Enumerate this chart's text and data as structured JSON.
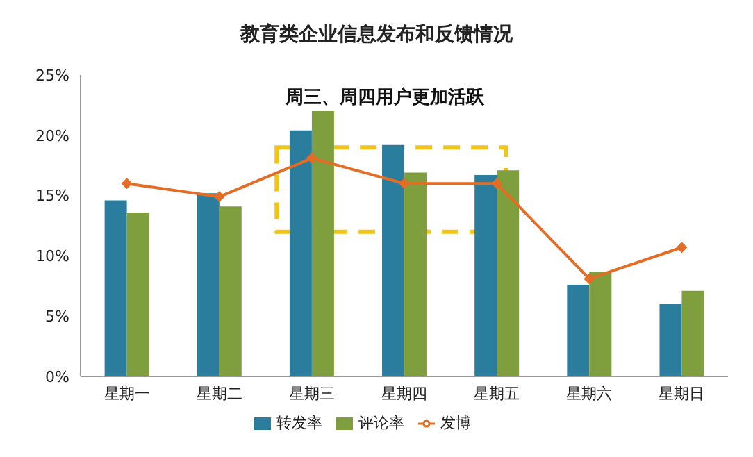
{
  "chart_data": {
    "type": "bar",
    "title": "教育类企业信息发布和反馈情况",
    "categories": [
      "星期一",
      "星期二",
      "星期三",
      "星期四",
      "星期五",
      "星期六",
      "星期日"
    ],
    "series": [
      {
        "name": "转发率",
        "color": "#2b7d9e",
        "values": [
          14.6,
          15.2,
          20.4,
          19.2,
          16.7,
          7.6,
          6.0
        ]
      },
      {
        "name": "评论率",
        "color": "#7f9e3e",
        "values": [
          13.6,
          14.1,
          22.0,
          16.9,
          17.1,
          8.7,
          7.1
        ]
      },
      {
        "name": "发博",
        "type": "line",
        "color": "#e46c24",
        "marker": "diamond",
        "values": [
          16.0,
          14.9,
          18.1,
          16.0,
          16.0,
          8.1,
          10.7
        ]
      }
    ],
    "ylim": [
      0,
      25
    ],
    "yticks": [
      {
        "value": 0,
        "label": "0%"
      },
      {
        "value": 5,
        "label": "5%"
      },
      {
        "value": 10,
        "label": "10%"
      },
      {
        "value": 15,
        "label": "15%"
      },
      {
        "value": 20,
        "label": "20%"
      },
      {
        "value": 25,
        "label": "25%"
      }
    ],
    "annotations": [
      "周三、周四用户更加活跃"
    ],
    "legend": "bottom"
  }
}
